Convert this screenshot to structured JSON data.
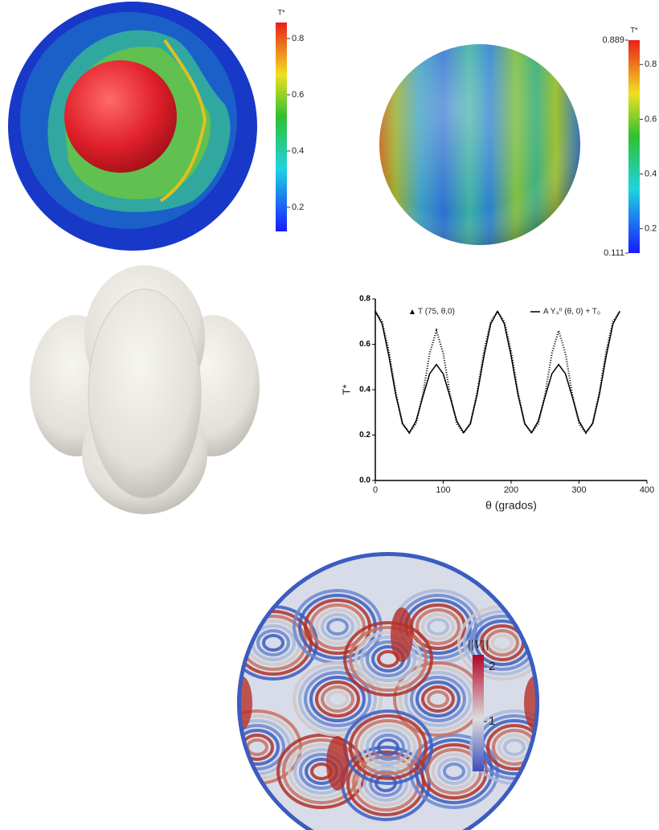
{
  "colorbar_a": {
    "title": "T*",
    "lim": [
      0.114,
      0.857
    ],
    "ticks": [
      0.2,
      0.4,
      0.6,
      0.8
    ]
  },
  "colorbar_b": {
    "title": "T*",
    "lim": [
      0.111,
      0.889
    ],
    "ticks": [
      0.2,
      0.4,
      0.6,
      0.8
    ]
  },
  "chart_data": {
    "type": "line",
    "x_label": "θ (grados)",
    "y_label": "T*",
    "x": [
      0,
      10,
      20,
      30,
      40,
      50,
      60,
      70,
      80,
      90,
      100,
      110,
      120,
      130,
      140,
      150,
      160,
      170,
      180,
      190,
      200,
      210,
      220,
      230,
      240,
      250,
      260,
      270,
      280,
      290,
      300,
      310,
      320,
      330,
      340,
      350,
      360
    ],
    "series": [
      {
        "name": "T (75, θ,0)",
        "color": "#000000",
        "style": "dotted",
        "values": [
          0.745,
          0.7,
          0.57,
          0.39,
          0.25,
          0.21,
          0.25,
          0.38,
          0.56,
          0.66,
          0.56,
          0.38,
          0.25,
          0.21,
          0.25,
          0.39,
          0.57,
          0.7,
          0.745,
          0.7,
          0.57,
          0.39,
          0.25,
          0.21,
          0.25,
          0.38,
          0.56,
          0.66,
          0.56,
          0.38,
          0.25,
          0.21,
          0.25,
          0.39,
          0.57,
          0.7,
          0.745
        ]
      },
      {
        "name": "A Y₄⁰ (θ, 0) + T₀",
        "color": "#000000",
        "style": "solid",
        "values": [
          0.745,
          0.69,
          0.548,
          0.379,
          0.251,
          0.21,
          0.262,
          0.369,
          0.47,
          0.511,
          0.47,
          0.369,
          0.262,
          0.21,
          0.251,
          0.379,
          0.548,
          0.69,
          0.745,
          0.69,
          0.548,
          0.379,
          0.251,
          0.21,
          0.262,
          0.369,
          0.47,
          0.511,
          0.47,
          0.369,
          0.262,
          0.21,
          0.251,
          0.379,
          0.548,
          0.69,
          0.745
        ]
      }
    ],
    "xlim": [
      0,
      400
    ],
    "ylim": [
      0,
      0.8
    ],
    "xticks": [
      0,
      100,
      200,
      300,
      400
    ],
    "yticks": [
      {
        "value": 0,
        "label": "0.0"
      },
      {
        "value": 0.2,
        "label": "0.2"
      },
      {
        "value": 0.4,
        "label": "0.4"
      },
      {
        "value": 0.6,
        "label": "0.6"
      },
      {
        "value": 0.8,
        "label": "0.8"
      }
    ]
  },
  "colorbar_c": {
    "title": "||V||",
    "lim": [
      0.09,
      2.22
    ],
    "ticks": [
      1,
      2
    ]
  }
}
